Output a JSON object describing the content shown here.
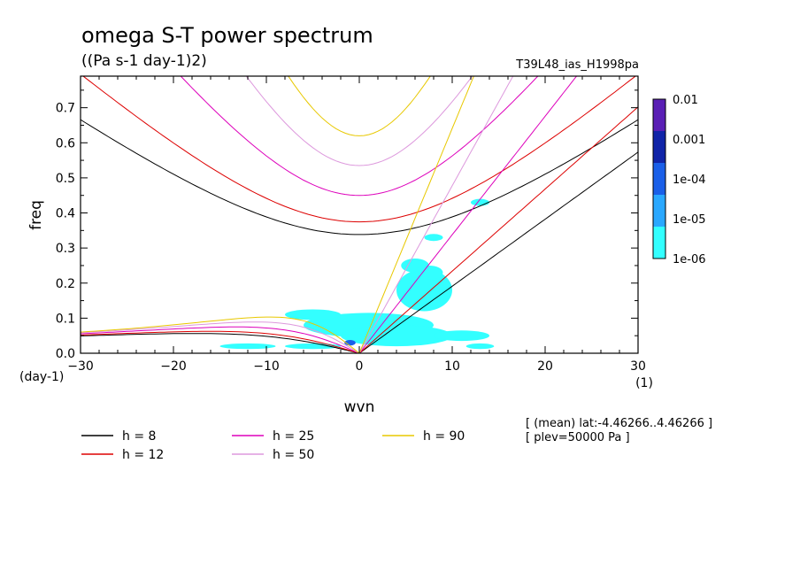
{
  "chart_data": {
    "type": "contour",
    "title": "omega S-T power spectrum",
    "subtitle": "((Pa s-1 day-1)2)",
    "run_label": "T39L48_ias_H1998pa",
    "xlabel": "wvn",
    "ylabel": "freq",
    "x_unit": "(1)",
    "y_unit": "(day-1)",
    "xlim": [
      -30,
      30
    ],
    "ylim": [
      0,
      0.79
    ],
    "xticks": [
      -30,
      -20,
      -10,
      0,
      10,
      20,
      30
    ],
    "yticks": [
      0.0,
      0.1,
      0.2,
      0.3,
      0.4,
      0.5,
      0.6,
      0.7
    ],
    "ytick_labels": [
      "0.0",
      "0.1",
      "0.2",
      "0.3",
      "0.4",
      "0.5",
      "0.6",
      "0.7"
    ],
    "colorbar": {
      "labels": [
        "0.01",
        "0.001",
        "1e-04",
        "1e-05",
        "1e-06"
      ],
      "colors": [
        "#5a1fb5",
        "#1024a8",
        "#1a5fe8",
        "#2aa8ff",
        "#33ffff"
      ]
    },
    "dispersion_series": [
      {
        "h": 8,
        "label": "h =  8",
        "color": "#000000"
      },
      {
        "h": 12,
        "label": "h = 12",
        "color": "#dd0000"
      },
      {
        "h": 25,
        "label": "h = 25",
        "color": "#dd00bb"
      },
      {
        "h": 50,
        "label": "h = 50",
        "color": "#dd99dd"
      },
      {
        "h": 90,
        "label": "h = 90",
        "color": "#e8c800"
      }
    ],
    "annotations": [
      "[ (mean) lat:-4.46266..4.46266 ]",
      "[ plev=50000 Pa ]"
    ],
    "power_regions_1e-06": [
      {
        "x": 1,
        "y": 0.08,
        "rx": 7,
        "ry": 0.035
      },
      {
        "x": -5,
        "y": 0.11,
        "rx": 3,
        "ry": 0.015
      },
      {
        "x": 4,
        "y": 0.05,
        "rx": 6,
        "ry": 0.03
      },
      {
        "x": -12,
        "y": 0.02,
        "rx": 3,
        "ry": 0.008
      },
      {
        "x": -5,
        "y": 0.02,
        "rx": 3,
        "ry": 0.008
      },
      {
        "x": 7,
        "y": 0.18,
        "rx": 3,
        "ry": 0.06
      },
      {
        "x": 6,
        "y": 0.25,
        "rx": 1.5,
        "ry": 0.02
      },
      {
        "x": 7.5,
        "y": 0.23,
        "rx": 1.5,
        "ry": 0.02
      },
      {
        "x": 11,
        "y": 0.05,
        "rx": 3,
        "ry": 0.015
      },
      {
        "x": 13,
        "y": 0.02,
        "rx": 1.5,
        "ry": 0.008
      },
      {
        "x": 8,
        "y": 0.33,
        "rx": 1,
        "ry": 0.01
      },
      {
        "x": 13,
        "y": 0.43,
        "rx": 1,
        "ry": 0.01
      }
    ],
    "power_regions_1e-05": [
      {
        "x": -1,
        "y": 0.03,
        "rx": 0.6,
        "ry": 0.008
      }
    ]
  }
}
